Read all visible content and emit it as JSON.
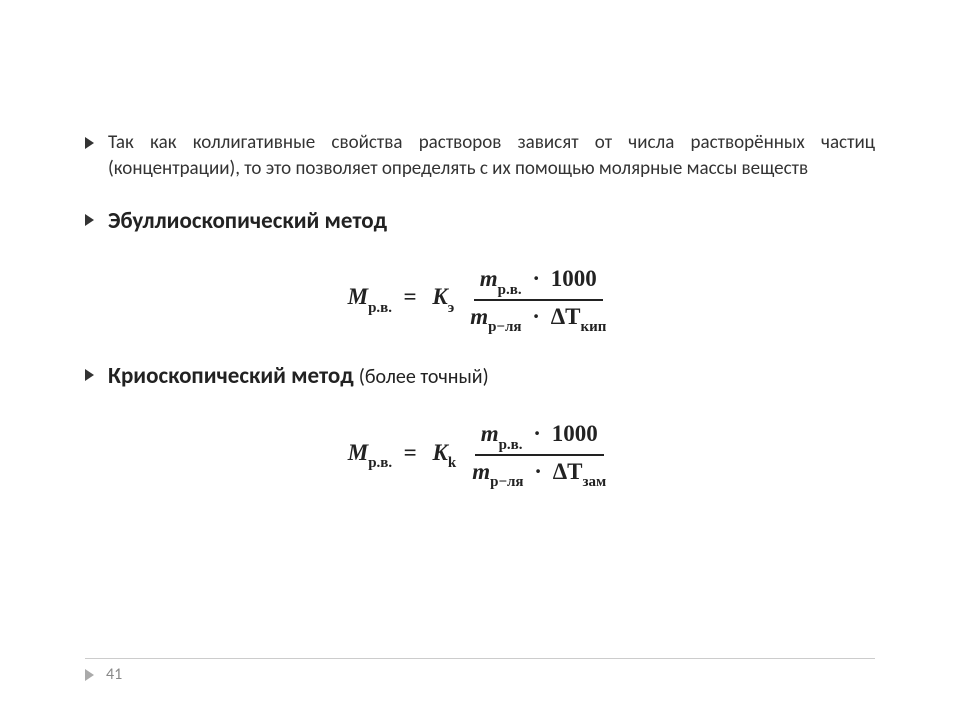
{
  "intro_paragraph": "Так как коллигативные свойства растворов зависят от числа растворённых частиц (концентрации), то это позволяет определять с их помощью молярные массы веществ",
  "method1": {
    "title": "Эбуллиоскопический метод",
    "formula": {
      "lhs_var": "M",
      "lhs_sub": "р.в.",
      "coef_var": "K",
      "coef_sub": "э",
      "num_var": "m",
      "num_sub": "р.в.",
      "num_mult": "1000",
      "den_var": "m",
      "den_sub": "р−ля",
      "den_delta": "ΔT",
      "den_delta_sub": "кип"
    }
  },
  "method2": {
    "title_main": "Криоскопический метод",
    "title_paren": "(более точный)",
    "formula": {
      "lhs_var": "M",
      "lhs_sub": "р.в.",
      "coef_var": "K",
      "coef_sub": "k",
      "num_var": "m",
      "num_sub": "р.в.",
      "num_mult": "1000",
      "den_var": "m",
      "den_sub": "р−ля",
      "den_delta": "ΔT",
      "den_delta_sub": "зам"
    }
  },
  "page_number": "41",
  "colors": {
    "background": "#ffffff",
    "text": "#333333",
    "formula": "#222222",
    "footer_arrow": "#aaaaaa",
    "footer_text": "#888888",
    "divider": "#cccccc"
  }
}
